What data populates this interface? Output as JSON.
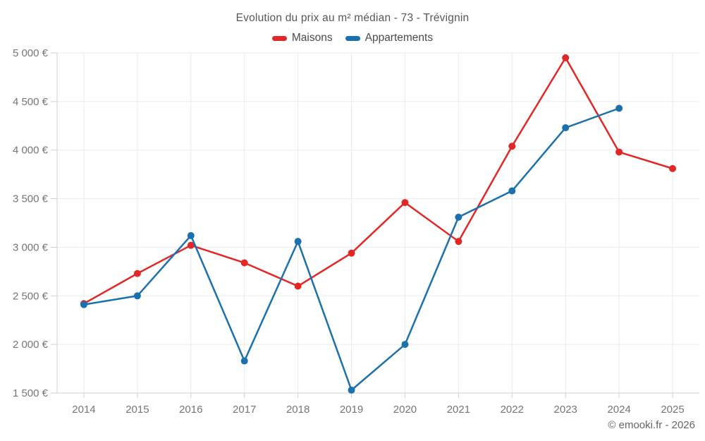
{
  "page": {
    "footer": "© emooki.fr - 2026"
  },
  "chart_data": {
    "type": "line",
    "title": "Evolution du prix au m² médian - 73 - Trévignin",
    "categories": [
      "2014",
      "2015",
      "2016",
      "2017",
      "2018",
      "2019",
      "2020",
      "2021",
      "2022",
      "2023",
      "2024",
      "2025"
    ],
    "series": [
      {
        "name": "Maisons",
        "color": "#e22727",
        "values": [
          2420,
          2730,
          3020,
          2840,
          2600,
          2940,
          3460,
          3060,
          4040,
          4950,
          3980,
          3810
        ]
      },
      {
        "name": "Appartements",
        "color": "#1b71ad",
        "values": [
          2410,
          2500,
          3120,
          1830,
          3060,
          1530,
          2000,
          3310,
          3580,
          4230,
          4430,
          null
        ]
      }
    ],
    "xlabel": "",
    "ylabel": "",
    "ylim": [
      1500,
      5000
    ],
    "yticks": [
      1500,
      2000,
      2500,
      3000,
      3500,
      4000,
      4500,
      5000
    ],
    "ytick_labels": [
      "1 500 €",
      "2 000 €",
      "2 500 €",
      "3 000 €",
      "3 500 €",
      "4 000 €",
      "4 500 €",
      "5 000 €"
    ],
    "grid": true,
    "legend_position": "top"
  },
  "colors": {
    "grid": "#ebebeb",
    "axis": "#d0d0d0",
    "tick_text": "#757575",
    "title_text": "#575757",
    "legend_text": "#4a4a4a",
    "footer_text": "#666666",
    "background": "#ffffff"
  }
}
